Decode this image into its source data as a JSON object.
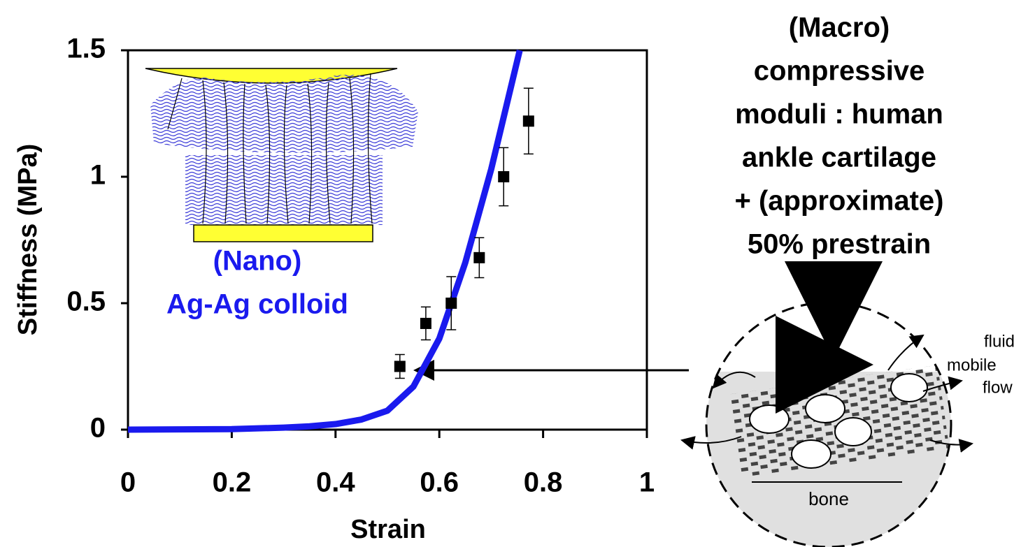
{
  "chart_data": {
    "type": "line",
    "xlabel": "Strain",
    "ylabel": "Stiffness (MPa)",
    "xlim": [
      0,
      1
    ],
    "ylim": [
      0,
      1.5
    ],
    "xticks": [
      0,
      0.2,
      0.4,
      0.6,
      0.8,
      1
    ],
    "yticks": [
      0,
      0.5,
      1,
      1.5
    ],
    "series": [
      {
        "name": "Ag-Ag colloid",
        "color": "#1a1aee",
        "marker": "none",
        "x": [
          0,
          0.1,
          0.2,
          0.3,
          0.35,
          0.4,
          0.45,
          0.5,
          0.55,
          0.6,
          0.65,
          0.7,
          0.755
        ],
        "values": [
          0,
          0.001,
          0.002,
          0.008,
          0.013,
          0.022,
          0.04,
          0.075,
          0.17,
          0.36,
          0.66,
          1.03,
          1.5
        ]
      },
      {
        "name": "human ankle cartilage",
        "color": "#000000",
        "marker": "square",
        "x": [
          0.524,
          0.574,
          0.623,
          0.677,
          0.724,
          0.772
        ],
        "values": [
          0.25,
          0.42,
          0.5,
          0.68,
          1.0,
          1.22
        ],
        "errors": [
          0.047,
          0.065,
          0.105,
          0.079,
          0.115,
          0.13
        ]
      }
    ],
    "annotations": {
      "macro": [
        "(Macro)",
        "compressive",
        "moduli : human",
        "ankle cartilage",
        "+ (approximate)",
        "50% prestrain"
      ],
      "nano": [
        "(Nano)",
        "Ag-Ag colloid"
      ],
      "diagram": {
        "force_vertical": "F",
        "force_horizontal": "F",
        "flow": [
          "fluid",
          "mobile",
          "flow"
        ],
        "bone": "bone"
      }
    }
  }
}
